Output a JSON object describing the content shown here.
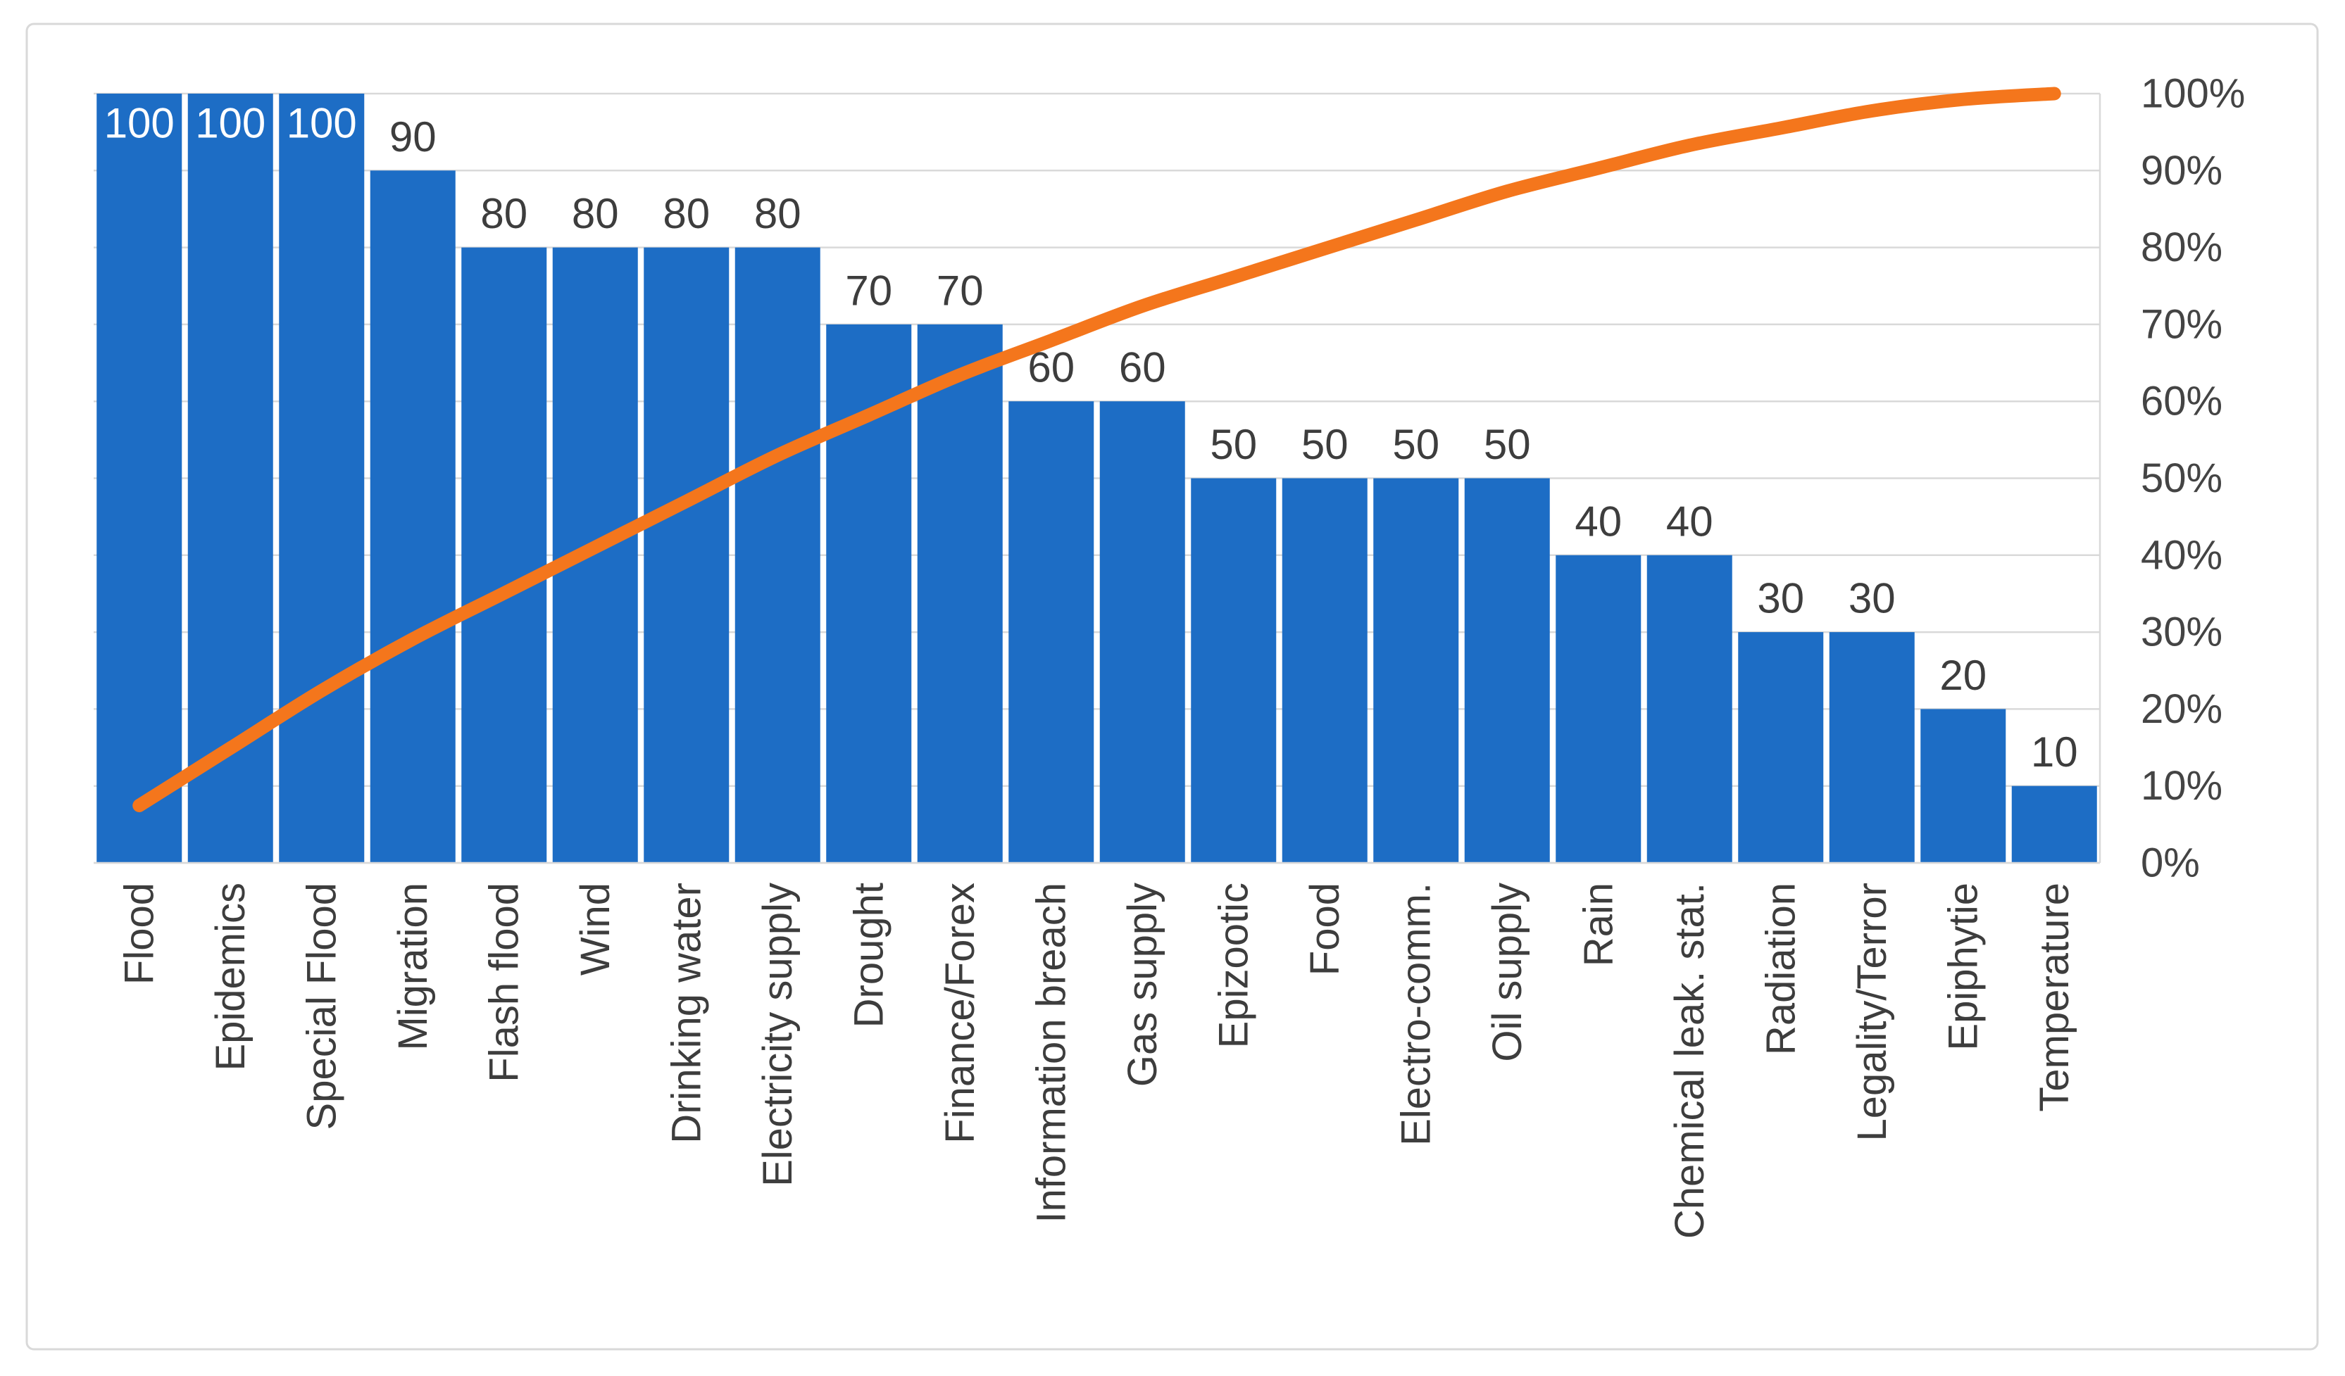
{
  "chart_data": {
    "type": "bar",
    "subtype": "pareto",
    "title": "",
    "legend": "none",
    "grid": "horizontal gridlines every 10%",
    "categories": [
      "Flood",
      "Epidemics",
      "Special Flood",
      "Migration",
      "Flash flood",
      "Wind",
      "Drinking water",
      "Electricity supply",
      "Drought",
      "Finance/Forex",
      "Information breach",
      "Gas supply",
      "Epizootic",
      "Food",
      "Electro-comm.",
      "Oil supply",
      "Rain",
      "Chemical leak. stat.",
      "Radiation",
      "Legality/Terror",
      "Epiphytie",
      "Temperature"
    ],
    "values": [
      100,
      100,
      100,
      90,
      80,
      80,
      80,
      80,
      70,
      70,
      60,
      60,
      50,
      50,
      50,
      50,
      40,
      40,
      30,
      30,
      20,
      10
    ],
    "bar_axis_range": [
      0,
      100
    ],
    "series": [
      {
        "name": "cumulative-percentage-line",
        "type": "line",
        "values_pct": [
          7.46,
          14.93,
          22.39,
          29.1,
          35.07,
          41.04,
          47.01,
          52.99,
          58.21,
          63.43,
          67.91,
          72.39,
          76.12,
          79.85,
          83.58,
          87.31,
          90.3,
          93.28,
          95.52,
          97.76,
          99.25,
          100.0
        ]
      }
    ],
    "right_axis": {
      "range_pct": [
        0,
        100
      ],
      "ticks": [
        "100%",
        "90%",
        "80%",
        "70%",
        "60%",
        "50%",
        "40%",
        "30%",
        "20%",
        "10%",
        "0%"
      ]
    }
  },
  "colors": {
    "bar": "#1D6DC5",
    "line": "#F4761C",
    "grid": "#D9D9D9",
    "frame_border": "#D9D9D9",
    "axis_text": "#444444",
    "bar_label_outside": "#3D3D3D",
    "bar_label_inside": "#FFFFFF",
    "background": "#FFFFFF"
  }
}
